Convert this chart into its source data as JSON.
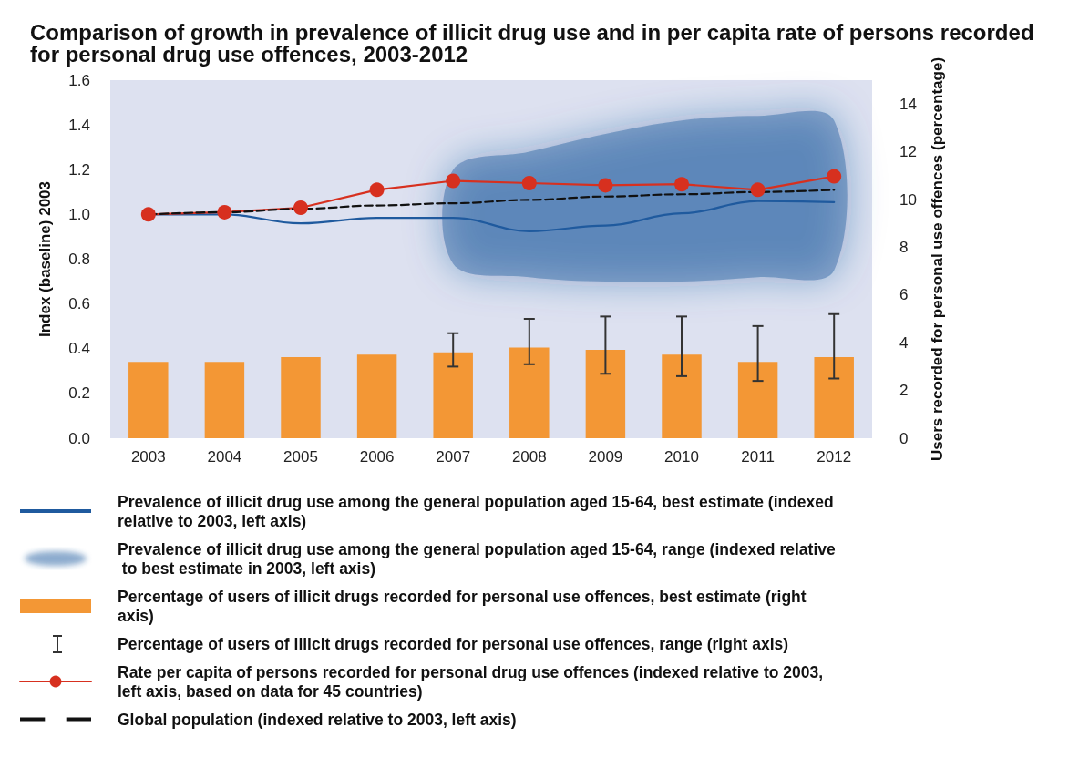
{
  "chart_data": {
    "type": "line",
    "title": "Comparison of growth in prevalence of illicit drug use and in per capita rate of persons recorded for personal drug use offences, 2003-2012",
    "ylabel": "Index (baseline) 2003",
    "y2label": "Users recorded for personal use offences (percentage)",
    "categories": [
      "2003",
      "2004",
      "2005",
      "2006",
      "2007",
      "2008",
      "2009",
      "2010",
      "2011",
      "2012"
    ],
    "ylim": [
      0,
      1.6
    ],
    "yticks": [
      {
        "value": 0,
        "label": "0.0"
      },
      {
        "value": 0.2,
        "label": "0.2"
      },
      {
        "value": 0.4,
        "label": "0.4"
      },
      {
        "value": 0.6,
        "label": "0.6"
      },
      {
        "value": 0.8,
        "label": "0.8"
      },
      {
        "value": 1,
        "label": "1.0"
      },
      {
        "value": 1.2,
        "label": "1.2"
      },
      {
        "value": 1.4,
        "label": "1.4"
      },
      {
        "value": 1.6,
        "label": "1.6"
      }
    ],
    "y2lim": [
      0,
      15
    ],
    "y2ticks": [
      0,
      2,
      4,
      6,
      8,
      10,
      12,
      14
    ],
    "legend": "bottom",
    "series": [
      {
        "name": "Prevalence of illicit drug use among the general population aged 15-64, best estimate (indexed relative to 2003, left axis)",
        "color": "#1f5a9e",
        "marker": "none",
        "values": [
          1.0,
          1.0,
          0.96,
          0.985,
          0.985,
          0.925,
          0.95,
          1.005,
          1.06,
          1.055
        ],
        "lower": [
          null,
          null,
          null,
          null,
          0.78,
          0.72,
          0.7,
          0.7,
          0.72,
          0.75
        ],
        "upper": [
          null,
          null,
          null,
          null,
          1.2,
          1.28,
          1.36,
          1.42,
          1.44,
          1.42
        ]
      },
      {
        "name": "Percentage of users of illicit drugs recorded for personal use offences, best estimate (right axis)",
        "type": "bar",
        "axis": "y2",
        "color": "#f39735",
        "values": [
          3.2,
          3.2,
          3.4,
          3.5,
          3.6,
          3.8,
          3.7,
          3.5,
          3.2,
          3.4
        ],
        "errors": [
          null,
          null,
          null,
          null,
          [
            3.0,
            4.4
          ],
          [
            3.1,
            5.0
          ],
          [
            2.7,
            5.1
          ],
          [
            2.6,
            5.1
          ],
          [
            2.4,
            4.7
          ],
          [
            2.5,
            5.2
          ]
        ]
      },
      {
        "name": "Rate per capita of persons recorded for personal drug use offences (indexed relative to 2003, left axis, based on data for 45 countries)",
        "color": "#d7301f",
        "marker": "circle",
        "values": [
          1.0,
          1.01,
          1.03,
          1.11,
          1.15,
          1.14,
          1.13,
          1.135,
          1.11,
          1.17
        ]
      },
      {
        "name": "Global population (indexed relative to 2003, left axis)",
        "color": "#111111",
        "marker": "none",
        "line_style": "dashed",
        "values": [
          1.0,
          1.01,
          1.025,
          1.04,
          1.05,
          1.065,
          1.08,
          1.09,
          1.1,
          1.11
        ]
      }
    ],
    "annotations": [
      "Percentage of users of illicit drugs recorded for personal use offences, range (right axis)",
      "Prevalence of illicit drug use among the general population aged 15-64, range (indexed relative to best estimate in 2003, left axis)"
    ]
  }
}
